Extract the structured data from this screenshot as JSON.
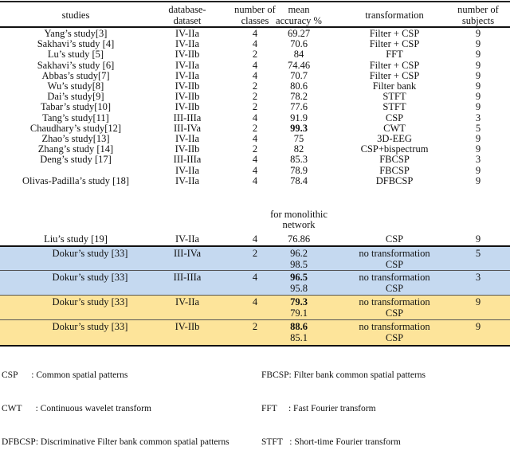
{
  "table": {
    "headers": {
      "studies": "studies",
      "database_dataset": "database-\ndataset",
      "number_of_classes": "number of\nclasses",
      "mean_accuracy": "mean\naccuracy %",
      "transformation": "transformation",
      "number_of_subjects": "number of\nsubjects"
    },
    "header_lines": {
      "database_1": "database-",
      "database_2": "dataset",
      "classes_1": "number of",
      "classes_2": "classes",
      "accuracy_1": "mean",
      "accuracy_2": "accuracy %",
      "subjects_1": "number of",
      "subjects_2": "subjects"
    },
    "rows": [
      {
        "study": "Yang’s study[3]",
        "dataset": "IV-IIa",
        "classes": "4",
        "accuracy": "69.27",
        "transformation": "Filter + CSP",
        "subjects": "9"
      },
      {
        "study": "Sakhavi’s study [4]",
        "dataset": "IV-IIa",
        "classes": "4",
        "accuracy": "70.6",
        "transformation": "Filter + CSP",
        "subjects": "9"
      },
      {
        "study": "Lu’s study [5]",
        "dataset": "IV-IIb",
        "classes": "2",
        "accuracy": "84",
        "transformation": "FFT",
        "subjects": "9"
      },
      {
        "study": "Sakhavi’s study [6]",
        "dataset": "IV-IIa",
        "classes": "4",
        "accuracy": "74.46",
        "transformation": "Filter + CSP",
        "subjects": "9"
      },
      {
        "study": "Abbas’s study[7]",
        "dataset": "IV-IIa",
        "classes": "4",
        "accuracy": "70.7",
        "transformation": "Filter + CSP",
        "subjects": "9"
      },
      {
        "study": "Wu’s study[8]",
        "dataset": "IV-IIb",
        "classes": "2",
        "accuracy": "80.6",
        "transformation": "Filter bank",
        "subjects": "9"
      },
      {
        "study": "Dai’s study[9]",
        "dataset": "IV-IIb",
        "classes": "2",
        "accuracy": "78.2",
        "transformation": "STFT",
        "subjects": "9"
      },
      {
        "study": "Tabar’s study[10]",
        "dataset": "IV-IIb",
        "classes": "2",
        "accuracy": "77.6",
        "transformation": "STFT",
        "subjects": "9"
      },
      {
        "study": "Tang’s study[11]",
        "dataset": "III-IIIa",
        "classes": "4",
        "accuracy": "91.9",
        "transformation": "CSP",
        "subjects": "3"
      },
      {
        "study": "Chaudhary’s study[12]",
        "dataset": "III-IVa",
        "classes": "2",
        "accuracy": "99.3",
        "transformation": "CWT",
        "subjects": "5"
      },
      {
        "study": "Zhao’s study[13]",
        "dataset": "IV-IIa",
        "classes": "4",
        "accuracy": "75",
        "transformation": "3D-EEG",
        "subjects": "9"
      },
      {
        "study": "Zhang’s study [14]",
        "dataset": "IV-IIb",
        "classes": "2",
        "accuracy": "82",
        "transformation": "CSP+bispectrum",
        "subjects": "9"
      },
      {
        "study": "Deng’s study [17]",
        "dataset": "III-IIIa",
        "classes": "4",
        "accuracy": "85.3",
        "transformation": "FBCSP",
        "subjects": "3"
      },
      {
        "study": "",
        "dataset": "IV-IIa",
        "classes": "4",
        "accuracy": "78.9",
        "transformation": "FBCSP",
        "subjects": "9"
      },
      {
        "study": "Olivas-Padilla’s study [18]",
        "dataset": "IV-IIa",
        "classes": "4",
        "accuracy": "78.4",
        "transformation": "DFBCSP",
        "subjects": "9"
      }
    ],
    "liu_row": {
      "note_1": "for monolithic",
      "note_2": "network",
      "study": "Liu’s study [19]",
      "dataset": "IV-IIa",
      "classes": "4",
      "accuracy": "76.86",
      "transformation": "CSP",
      "subjects": "9"
    },
    "dokur_rows": [
      {
        "study": "Dokur’s study [33]",
        "dataset": "III-IVa",
        "classes": "2",
        "subjects": "5",
        "color": "#c5d9f0",
        "results": [
          {
            "accuracy": "96.2",
            "bold": false,
            "transformation": "no transformation"
          },
          {
            "accuracy": "98.5",
            "bold": false,
            "transformation": "CSP"
          }
        ]
      },
      {
        "study": "Dokur’s study [33]",
        "dataset": "III-IIIa",
        "classes": "4",
        "subjects": "3",
        "color": "#c5d9f0",
        "results": [
          {
            "accuracy": "96.5",
            "bold": true,
            "transformation": "no transformation"
          },
          {
            "accuracy": "95.8",
            "bold": false,
            "transformation": "CSP"
          }
        ]
      },
      {
        "study": "Dokur’s study [33]",
        "dataset": "IV-IIa",
        "classes": "4",
        "subjects": "9",
        "color": "#fde49a",
        "results": [
          {
            "accuracy": "79.3",
            "bold": true,
            "transformation": "no transformation"
          },
          {
            "accuracy": "79.1",
            "bold": false,
            "transformation": "CSP"
          }
        ]
      },
      {
        "study": "Dokur’s study [33]",
        "dataset": "IV-IIb",
        "classes": "2",
        "subjects": "9",
        "color": "#fde49a",
        "results": [
          {
            "accuracy": "88.6",
            "bold": true,
            "transformation": "no transformation"
          },
          {
            "accuracy": "85.1",
            "bold": false,
            "transformation": "CSP"
          }
        ]
      }
    ]
  },
  "legend": {
    "left": [
      "CSP      : Common spatial patterns",
      "CWT      : Continuous wavelet transform",
      "DFBCSP: Discriminative Filter bank common spatial patterns"
    ],
    "right": [
      "FBCSP: Filter bank common spatial patterns",
      "FFT     : Fast Fourier transform",
      "STFT   : Short-time Fourier transform"
    ]
  },
  "colors": {
    "blue_highlight": "#c5d9f0",
    "yellow_highlight": "#fde49a"
  }
}
